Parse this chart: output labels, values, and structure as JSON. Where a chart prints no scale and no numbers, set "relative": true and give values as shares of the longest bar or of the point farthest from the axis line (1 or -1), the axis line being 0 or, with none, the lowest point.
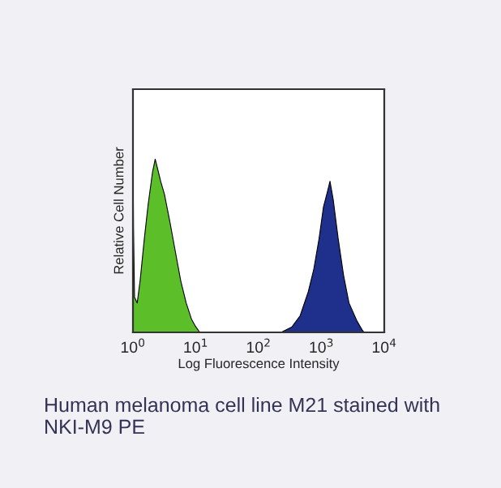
{
  "chart_data": {
    "type": "area",
    "relative": true,
    "log": "x",
    "xlabel": "Log Fluorescence Intensity",
    "ylabel": "Relative Cell Number",
    "xlim": [
      1,
      10000
    ],
    "xticks": [
      {
        "value": 1,
        "label": "10$^{0}$"
      },
      {
        "value": 10,
        "label": "10$^{1}$"
      },
      {
        "value": 100,
        "label": "10$^{2}$"
      },
      {
        "value": 1000,
        "label": "10$^{3}$"
      },
      {
        "value": 10000,
        "label": "10$^{4}$"
      }
    ],
    "series": [
      {
        "color": "#5cbf2a",
        "x": [
          1,
          1.02,
          1.06,
          1.17,
          1.3,
          1.52,
          1.74,
          2.05,
          2.26,
          2.5,
          2.76,
          3.17,
          3.87,
          4.72,
          5.76,
          7.03,
          8.58,
          10.0,
          11.6
        ],
        "values": [
          1.0,
          0.57,
          0.19,
          0.16,
          0.28,
          0.51,
          0.69,
          0.87,
          0.94,
          0.88,
          0.82,
          0.75,
          0.6,
          0.44,
          0.28,
          0.16,
          0.07,
          0.03,
          0
        ]
      },
      {
        "color": "#1e2f8c",
        "x": [
          228,
          340,
          458,
          617,
          753,
          918,
          1076,
          1238,
          1368,
          1541,
          1845,
          2250,
          2742,
          3700,
          4510,
          4790
        ],
        "values": [
          0,
          0.03,
          0.09,
          0.22,
          0.34,
          0.51,
          0.68,
          0.76,
          0.82,
          0.72,
          0.51,
          0.31,
          0.16,
          0.06,
          0.01,
          0
        ]
      }
    ],
    "annotations": [
      "Human melanoma cell line M21 stained with NKI-M9 PE"
    ]
  }
}
